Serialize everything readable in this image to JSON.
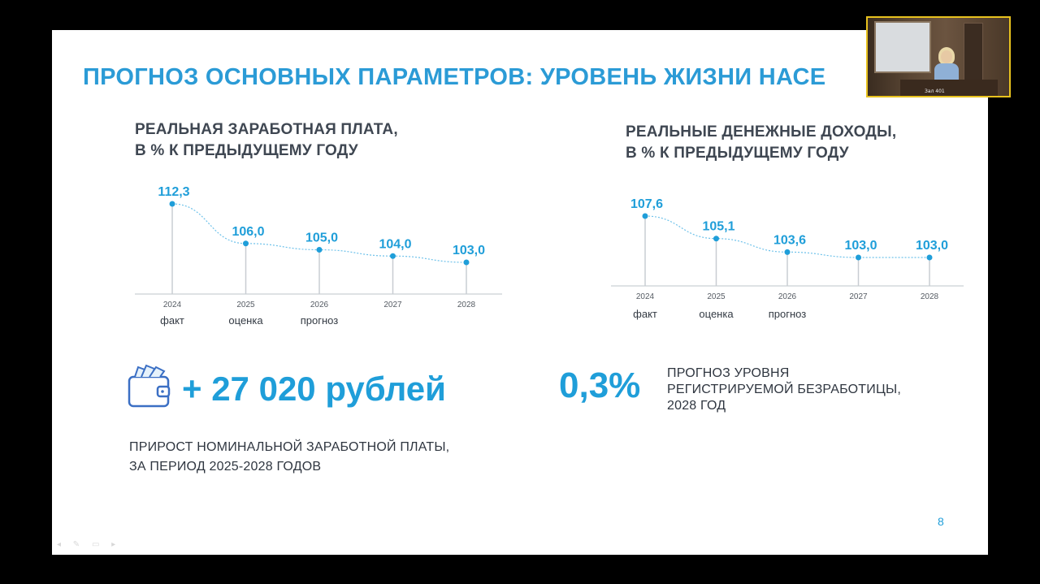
{
  "slide": {
    "title": "ПРОГНОЗ ОСНОВНЫХ ПАРАМЕТРОВ: УРОВЕНЬ ЖИЗНИ НАСЕ",
    "page_number": "8"
  },
  "chart_data": [
    {
      "type": "line",
      "title_line1": "РЕАЛЬНАЯ ЗАРАБОТНАЯ ПЛАТА,",
      "title_line2": "В % К ПРЕДЫДУЩЕМУ ГОДУ",
      "categories": [
        "2024",
        "2025",
        "2026",
        "2027",
        "2028"
      ],
      "values": [
        112.3,
        106.0,
        105.0,
        104.0,
        103.0
      ],
      "value_labels": [
        "112,3",
        "106,0",
        "105,0",
        "104,0",
        "103,0"
      ],
      "sublabels": [
        "факт",
        "оценка",
        "прогноз",
        "",
        ""
      ],
      "color": "#1f9ed9"
    },
    {
      "type": "line",
      "title_line1": "РЕАЛЬНЫЕ ДЕНЕЖНЫЕ ДОХОДЫ,",
      "title_line2": "В % К ПРЕДЫДУЩЕМУ ГОДУ",
      "categories": [
        "2024",
        "2025",
        "2026",
        "2027",
        "2028"
      ],
      "values": [
        107.6,
        105.1,
        103.6,
        103.0,
        103.0
      ],
      "value_labels": [
        "107,6",
        "105,1",
        "103,6",
        "103,0",
        "103,0"
      ],
      "sublabels": [
        "факт",
        "оценка",
        "прогноз",
        "",
        ""
      ],
      "color": "#1f9ed9"
    }
  ],
  "wage_growth": {
    "icon": "wallet-icon",
    "amount": "+ 27 020 рублей",
    "desc_line1": "ПРИРОСТ НОМИНАЛЬНОЙ ЗАРАБОТНОЙ ПЛАТЫ,",
    "desc_line2": "ЗА ПЕРИОД 2025-2028 ГОДОВ"
  },
  "unemployment": {
    "value": "0,3%",
    "desc_line1": "ПРОГНОЗ УРОВНЯ",
    "desc_line2": "РЕГИСТРИРУЕМОЙ БЕЗРАБОТИЦЫ,",
    "desc_line3": "2028 ГОД"
  },
  "video": {
    "caption": "Зал 401",
    "border_color": "#e8c21e"
  },
  "colors": {
    "accent": "#1f9ed9",
    "title": "#2b9bd6",
    "text": "#2f3640"
  }
}
